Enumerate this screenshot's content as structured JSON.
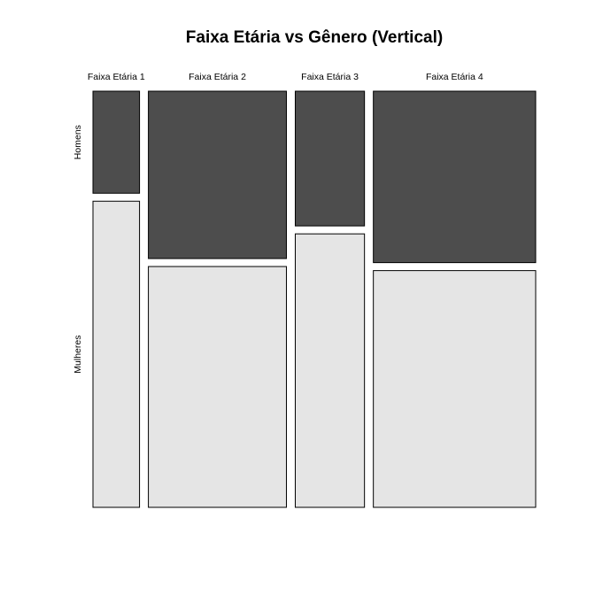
{
  "chart_data": {
    "type": "mosaic",
    "title": "Faixa Etária vs Gênero (Vertical)",
    "categories": [
      "Faixa Etária 1",
      "Faixa Etária 2",
      "Faixa Etária 3",
      "Faixa Etária 4"
    ],
    "column_shares": [
      0.115,
      0.341,
      0.171,
      0.401
    ],
    "series": [
      {
        "name": "Homens",
        "color": "#4d4d4d",
        "values": [
          0.25,
          0.41,
          0.33,
          0.42
        ]
      },
      {
        "name": "Mulheres",
        "color": "#e5e5e5",
        "values": [
          0.75,
          0.59,
          0.67,
          0.58
        ]
      }
    ]
  }
}
